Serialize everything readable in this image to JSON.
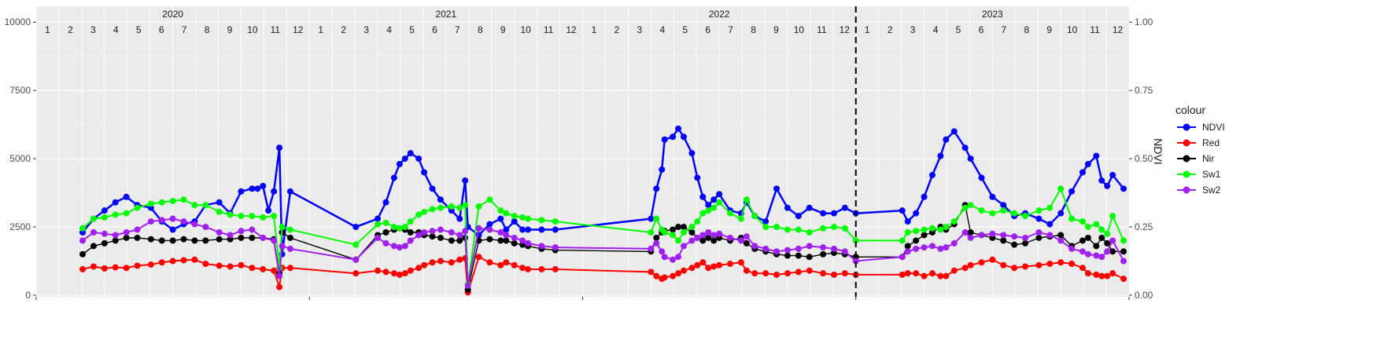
{
  "chart_data": {
    "type": "line",
    "title": "",
    "xlabel": "",
    "ylabel": "",
    "y2label": "NDVI",
    "ylim": [
      0,
      10000
    ],
    "y2lim": [
      0,
      1
    ],
    "yticks": [
      "0",
      "2500",
      "5000",
      "7500",
      "10000"
    ],
    "y2ticks": [
      "0.00",
      "0.25",
      "0.50",
      "0.75",
      "1.00"
    ],
    "xlim": [
      2020.0,
      2024.0
    ],
    "years": [
      "2020",
      "2021",
      "2022",
      "2023"
    ],
    "months": [
      "1",
      "2",
      "3",
      "4",
      "5",
      "6",
      "7",
      "8",
      "9",
      "10",
      "11",
      "12"
    ],
    "vline_x": 2023.0,
    "grid": true,
    "legend": {
      "title": "colour",
      "position": "right"
    },
    "series": [
      {
        "name": "NDVI",
        "color": "#0000ff",
        "axis": "right",
        "x": [
          2020.17,
          2020.21,
          2020.25,
          2020.29,
          2020.33,
          2020.37,
          2020.42,
          2020.46,
          2020.5,
          2020.54,
          2020.58,
          2020.62,
          2020.67,
          2020.71,
          2020.75,
          2020.79,
          2020.81,
          2020.83,
          2020.85,
          2020.87,
          2020.89,
          2020.9,
          2020.93,
          2021.17,
          2021.25,
          2021.28,
          2021.31,
          2021.33,
          2021.35,
          2021.37,
          2021.4,
          2021.42,
          2021.45,
          2021.48,
          2021.52,
          2021.55,
          2021.57,
          2021.58,
          2021.62,
          2021.66,
          2021.7,
          2021.72,
          2021.75,
          2021.78,
          2021.8,
          2021.85,
          2021.9,
          2022.25,
          2022.27,
          2022.29,
          2022.3,
          2022.33,
          2022.35,
          2022.37,
          2022.4,
          2022.42,
          2022.44,
          2022.46,
          2022.48,
          2022.5,
          2022.54,
          2022.58,
          2022.6,
          2022.63,
          2022.67,
          2022.71,
          2022.75,
          2022.79,
          2022.83,
          2022.88,
          2022.92,
          2022.96,
          2023.0,
          2023.17,
          2023.19,
          2023.22,
          2023.25,
          2023.28,
          2023.31,
          2023.33,
          2023.36,
          2023.4,
          2023.42,
          2023.46,
          2023.5,
          2023.54,
          2023.58,
          2023.62,
          2023.67,
          2023.71,
          2023.75,
          2023.79,
          2023.83,
          2023.85,
          2023.88,
          2023.9,
          2023.92,
          2023.94,
          2023.98
        ],
        "y": [
          0.23,
          0.28,
          0.31,
          0.34,
          0.36,
          0.33,
          0.32,
          0.27,
          0.24,
          0.26,
          0.27,
          0.33,
          0.34,
          0.3,
          0.38,
          0.39,
          0.39,
          0.4,
          0.31,
          0.38,
          0.54,
          0.15,
          0.38,
          0.25,
          0.28,
          0.34,
          0.43,
          0.48,
          0.5,
          0.52,
          0.5,
          0.45,
          0.39,
          0.35,
          0.31,
          0.28,
          0.42,
          0.25,
          0.22,
          0.26,
          0.28,
          0.24,
          0.27,
          0.24,
          0.24,
          0.24,
          0.24,
          0.28,
          0.39,
          0.46,
          0.57,
          0.58,
          0.61,
          0.58,
          0.52,
          0.43,
          0.36,
          0.33,
          0.35,
          0.37,
          0.31,
          0.3,
          0.34,
          0.29,
          0.27,
          0.39,
          0.32,
          0.29,
          0.32,
          0.3,
          0.3,
          0.32,
          0.3,
          0.31,
          0.27,
          0.3,
          0.36,
          0.44,
          0.51,
          0.57,
          0.6,
          0.54,
          0.5,
          0.43,
          0.36,
          0.33,
          0.29,
          0.3,
          0.28,
          0.26,
          0.3,
          0.38,
          0.45,
          0.48,
          0.51,
          0.42,
          0.4,
          0.44,
          0.39
        ]
      },
      {
        "name": "Red",
        "color": "#ff0000",
        "axis": "left",
        "x": [
          2020.17,
          2020.21,
          2020.25,
          2020.29,
          2020.33,
          2020.37,
          2020.42,
          2020.46,
          2020.5,
          2020.54,
          2020.58,
          2020.62,
          2020.67,
          2020.71,
          2020.75,
          2020.79,
          2020.83,
          2020.87,
          2020.89,
          2020.9,
          2020.93,
          2021.17,
          2021.25,
          2021.28,
          2021.31,
          2021.33,
          2021.35,
          2021.37,
          2021.4,
          2021.42,
          2021.45,
          2021.48,
          2021.52,
          2021.55,
          2021.57,
          2021.58,
          2021.62,
          2021.66,
          2021.7,
          2021.72,
          2021.75,
          2021.78,
          2021.8,
          2021.85,
          2021.9,
          2022.25,
          2022.27,
          2022.29,
          2022.3,
          2022.33,
          2022.35,
          2022.37,
          2022.4,
          2022.42,
          2022.44,
          2022.46,
          2022.48,
          2022.5,
          2022.54,
          2022.58,
          2022.6,
          2022.63,
          2022.67,
          2022.71,
          2022.75,
          2022.79,
          2022.83,
          2022.88,
          2022.92,
          2022.96,
          2023.0,
          2023.17,
          2023.19,
          2023.22,
          2023.25,
          2023.28,
          2023.31,
          2023.33,
          2023.36,
          2023.4,
          2023.42,
          2023.46,
          2023.5,
          2023.54,
          2023.58,
          2023.62,
          2023.67,
          2023.71,
          2023.75,
          2023.79,
          2023.83,
          2023.85,
          2023.88,
          2023.9,
          2023.92,
          2023.94,
          2023.98
        ],
        "y": [
          950,
          1050,
          980,
          1020,
          1000,
          1080,
          1120,
          1200,
          1250,
          1280,
          1300,
          1150,
          1080,
          1050,
          1100,
          1000,
          950,
          900,
          300,
          1000,
          1000,
          800,
          900,
          850,
          800,
          750,
          800,
          900,
          1000,
          1100,
          1200,
          1250,
          1200,
          1300,
          1350,
          100,
          1400,
          1200,
          1100,
          1200,
          1100,
          1000,
          950,
          950,
          950,
          850,
          700,
          600,
          650,
          700,
          800,
          900,
          1000,
          1100,
          1200,
          1000,
          1050,
          1100,
          1150,
          1200,
          900,
          800,
          800,
          750,
          800,
          850,
          900,
          800,
          750,
          800,
          750,
          750,
          800,
          800,
          700,
          800,
          700,
          700,
          900,
          1000,
          1100,
          1200,
          1300,
          1100,
          1000,
          1050,
          1100,
          1150,
          1200,
          1150,
          1000,
          800,
          750,
          700,
          700,
          800,
          600
        ]
      },
      {
        "name": "Nir",
        "color": "#000000",
        "axis": "left",
        "x": [
          2020.17,
          2020.21,
          2020.25,
          2020.29,
          2020.33,
          2020.37,
          2020.42,
          2020.46,
          2020.5,
          2020.54,
          2020.58,
          2020.62,
          2020.67,
          2020.71,
          2020.75,
          2020.79,
          2020.83,
          2020.87,
          2020.89,
          2020.9,
          2020.93,
          2021.17,
          2021.25,
          2021.28,
          2021.31,
          2021.33,
          2021.35,
          2021.37,
          2021.4,
          2021.42,
          2021.45,
          2021.48,
          2021.52,
          2021.55,
          2021.57,
          2021.58,
          2021.62,
          2021.66,
          2021.7,
          2021.72,
          2021.75,
          2021.78,
          2021.8,
          2021.85,
          2021.9,
          2022.25,
          2022.27,
          2022.29,
          2022.3,
          2022.33,
          2022.35,
          2022.37,
          2022.4,
          2022.42,
          2022.44,
          2022.46,
          2022.48,
          2022.5,
          2022.54,
          2022.58,
          2022.6,
          2022.63,
          2022.67,
          2022.71,
          2022.75,
          2022.79,
          2022.83,
          2022.88,
          2022.92,
          2022.96,
          2023.0,
          2023.17,
          2023.19,
          2023.22,
          2023.25,
          2023.28,
          2023.31,
          2023.33,
          2023.36,
          2023.4,
          2023.42,
          2023.46,
          2023.5,
          2023.54,
          2023.58,
          2023.62,
          2023.67,
          2023.71,
          2023.75,
          2023.79,
          2023.83,
          2023.85,
          2023.88,
          2023.9,
          2023.92,
          2023.94,
          2023.98
        ],
        "y": [
          1500,
          1800,
          1900,
          2000,
          2100,
          2100,
          2050,
          2000,
          2000,
          2050,
          2000,
          2000,
          2050,
          2050,
          2100,
          2100,
          2100,
          2050,
          800,
          2300,
          2100,
          1300,
          2200,
          2300,
          2400,
          2450,
          2400,
          2300,
          2300,
          2200,
          2150,
          2100,
          2000,
          2000,
          2100,
          200,
          2000,
          2050,
          2000,
          2000,
          1900,
          1850,
          1800,
          1700,
          1650,
          1600,
          2100,
          2300,
          2350,
          2400,
          2500,
          2500,
          2300,
          2100,
          2000,
          2100,
          2000,
          2100,
          2000,
          2100,
          1900,
          1700,
          1600,
          1500,
          1450,
          1450,
          1400,
          1500,
          1550,
          1500,
          1400,
          1400,
          1800,
          2000,
          2200,
          2300,
          2500,
          2400,
          2600,
          3300,
          2300,
          2200,
          2100,
          2000,
          1850,
          1900,
          2100,
          2150,
          2200,
          1800,
          2000,
          2100,
          1800,
          2100,
          1900,
          1600,
          1600
        ]
      },
      {
        "name": "Sw1",
        "color": "#00ff00",
        "axis": "left",
        "x": [
          2020.17,
          2020.21,
          2020.25,
          2020.29,
          2020.33,
          2020.37,
          2020.42,
          2020.46,
          2020.5,
          2020.54,
          2020.58,
          2020.62,
          2020.67,
          2020.71,
          2020.75,
          2020.79,
          2020.83,
          2020.87,
          2020.89,
          2020.9,
          2020.93,
          2021.17,
          2021.25,
          2021.28,
          2021.31,
          2021.33,
          2021.35,
          2021.37,
          2021.4,
          2021.42,
          2021.45,
          2021.48,
          2021.52,
          2021.55,
          2021.57,
          2021.58,
          2021.62,
          2021.66,
          2021.7,
          2021.72,
          2021.75,
          2021.78,
          2021.8,
          2021.85,
          2021.9,
          2022.25,
          2022.27,
          2022.29,
          2022.3,
          2022.33,
          2022.35,
          2022.37,
          2022.4,
          2022.42,
          2022.44,
          2022.46,
          2022.48,
          2022.5,
          2022.54,
          2022.58,
          2022.6,
          2022.63,
          2022.67,
          2022.71,
          2022.75,
          2022.79,
          2022.83,
          2022.88,
          2022.92,
          2022.96,
          2023.0,
          2023.17,
          2023.19,
          2023.22,
          2023.25,
          2023.28,
          2023.31,
          2023.33,
          2023.36,
          2023.4,
          2023.42,
          2023.46,
          2023.5,
          2023.54,
          2023.58,
          2023.62,
          2023.67,
          2023.71,
          2023.75,
          2023.79,
          2023.83,
          2023.85,
          2023.88,
          2023.9,
          2023.92,
          2023.94,
          2023.98
        ],
        "y": [
          2450,
          2800,
          2850,
          2950,
          3000,
          3200,
          3350,
          3400,
          3450,
          3500,
          3300,
          3300,
          3050,
          2950,
          2900,
          2900,
          2850,
          2900,
          1000,
          2500,
          2400,
          1850,
          2600,
          2650,
          2500,
          2450,
          2500,
          2700,
          2950,
          3050,
          3150,
          3200,
          3250,
          3200,
          3300,
          400,
          3250,
          3500,
          3100,
          3000,
          2900,
          2850,
          2800,
          2750,
          2700,
          2300,
          2800,
          2400,
          2300,
          2200,
          2000,
          2300,
          2500,
          2700,
          3000,
          3100,
          3200,
          3400,
          3000,
          2800,
          3500,
          2900,
          2500,
          2500,
          2400,
          2400,
          2300,
          2450,
          2500,
          2450,
          2000,
          2000,
          2300,
          2350,
          2400,
          2450,
          2400,
          2500,
          2700,
          3200,
          3300,
          3100,
          3000,
          3100,
          3000,
          2900,
          3100,
          3200,
          3900,
          2800,
          2700,
          2500,
          2600,
          2400,
          2250,
          2900,
          2000
        ]
      },
      {
        "name": "Sw2",
        "color": "#a020f0",
        "axis": "left",
        "x": [
          2020.17,
          2020.21,
          2020.25,
          2020.29,
          2020.33,
          2020.37,
          2020.42,
          2020.46,
          2020.5,
          2020.54,
          2020.58,
          2020.62,
          2020.67,
          2020.71,
          2020.75,
          2020.79,
          2020.83,
          2020.87,
          2020.89,
          2020.9,
          2020.93,
          2021.17,
          2021.25,
          2021.28,
          2021.31,
          2021.33,
          2021.35,
          2021.37,
          2021.4,
          2021.42,
          2021.45,
          2021.48,
          2021.52,
          2021.55,
          2021.57,
          2021.58,
          2021.62,
          2021.66,
          2021.7,
          2021.72,
          2021.75,
          2021.78,
          2021.8,
          2021.85,
          2021.9,
          2022.25,
          2022.27,
          2022.29,
          2022.3,
          2022.33,
          2022.35,
          2022.37,
          2022.4,
          2022.42,
          2022.44,
          2022.46,
          2022.48,
          2022.5,
          2022.54,
          2022.58,
          2022.6,
          2022.63,
          2022.67,
          2022.71,
          2022.75,
          2022.79,
          2022.83,
          2022.88,
          2022.92,
          2022.96,
          2023.0,
          2023.17,
          2023.19,
          2023.22,
          2023.25,
          2023.28,
          2023.31,
          2023.33,
          2023.36,
          2023.4,
          2023.42,
          2023.46,
          2023.5,
          2023.54,
          2023.58,
          2023.62,
          2023.67,
          2023.71,
          2023.75,
          2023.79,
          2023.83,
          2023.85,
          2023.88,
          2023.9,
          2023.92,
          2023.94,
          2023.98
        ],
        "y": [
          2000,
          2300,
          2250,
          2200,
          2300,
          2400,
          2700,
          2750,
          2800,
          2700,
          2600,
          2500,
          2300,
          2200,
          2350,
          2400,
          2100,
          2000,
          700,
          1800,
          1700,
          1300,
          2100,
          1900,
          1800,
          1750,
          1800,
          2000,
          2200,
          2300,
          2350,
          2400,
          2300,
          2200,
          2350,
          350,
          2450,
          2400,
          2300,
          2200,
          2100,
          2000,
          1900,
          1800,
          1750,
          1700,
          1900,
          1600,
          1400,
          1300,
          1400,
          1800,
          2000,
          2100,
          2200,
          2300,
          2200,
          2250,
          2100,
          2000,
          2150,
          1800,
          1700,
          1600,
          1650,
          1700,
          1800,
          1750,
          1700,
          1600,
          1250,
          1400,
          1600,
          1700,
          1750,
          1800,
          1700,
          1750,
          1900,
          2300,
          2100,
          2200,
          2250,
          2200,
          2150,
          2100,
          2300,
          2200,
          2000,
          1700,
          1600,
          1500,
          1450,
          1400,
          1600,
          2000,
          1250
        ]
      }
    ]
  }
}
